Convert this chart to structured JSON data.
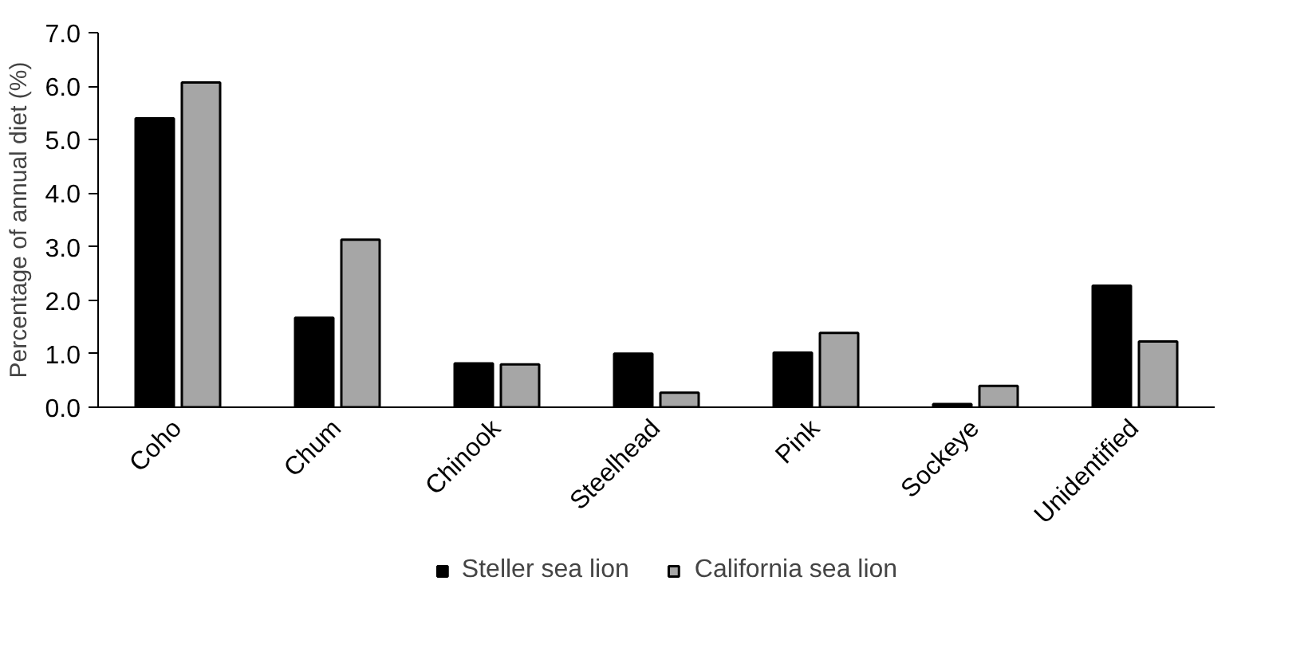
{
  "chart_data": {
    "type": "bar",
    "ylabel": "Percentage of annual diet (%)",
    "categories": [
      "Coho",
      "Chum",
      "Chinook",
      "Steelhead",
      "Pink",
      "Sockeye",
      "Unidentified"
    ],
    "series": [
      {
        "name": "Steller sea lion",
        "color": "#000000",
        "values": [
          5.4,
          1.67,
          0.82,
          1.0,
          1.02,
          0.06,
          2.27
        ]
      },
      {
        "name": "California sea lion",
        "color": "#a6a6a6",
        "values": [
          6.07,
          3.13,
          0.8,
          0.27,
          1.39,
          0.4,
          1.23
        ]
      }
    ],
    "ylim": [
      0,
      7
    ],
    "yticks": [
      {
        "value": 0,
        "label": "0.0"
      },
      {
        "value": 1,
        "label": "1.0"
      },
      {
        "value": 2,
        "label": "2.0"
      },
      {
        "value": 3,
        "label": "3.0"
      },
      {
        "value": 4,
        "label": "4.0"
      },
      {
        "value": 5,
        "label": "5.0"
      },
      {
        "value": 6,
        "label": "6.0"
      },
      {
        "value": 7,
        "label": "7.0"
      }
    ],
    "grid": false,
    "legend": "bottom"
  }
}
